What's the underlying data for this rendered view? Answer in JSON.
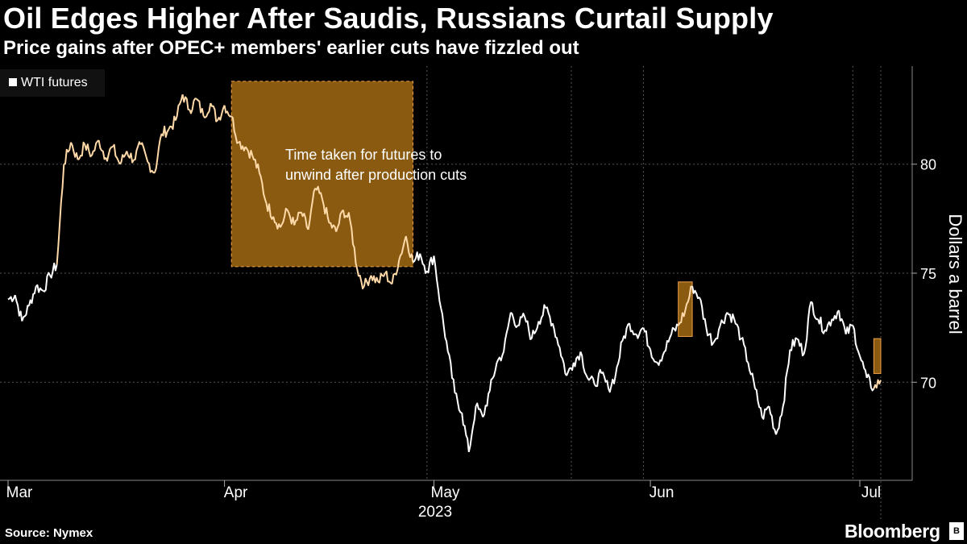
{
  "header": {
    "title": "Oil Edges Higher After Saudis, Russians Curtail Supply",
    "subtitle": "Price gains after OPEC+ members' earlier cuts have fizzled out"
  },
  "footer": {
    "source": "Source: Nymex",
    "brand": "Bloomberg"
  },
  "colors": {
    "background": "#000000",
    "line": "#ffffff",
    "highlight_line": "#ffd9a8",
    "highlight_box": "#8a5a10",
    "highlight_border": "#f0a24a",
    "grid": "#555555"
  },
  "chart_data": {
    "type": "line",
    "legend": {
      "label": "WTI futures",
      "position": "top-left"
    },
    "ylabel": "Dollars a barrel",
    "xlabel": "2023",
    "ylim": [
      65.5,
      84.5
    ],
    "yticks": [
      70,
      75,
      80
    ],
    "x_domain": [
      "2023-03-01",
      "2023-07-04"
    ],
    "month_ticks": [
      {
        "label": "Mar",
        "date": "2023-03-01"
      },
      {
        "label": "Apr",
        "date": "2023-04-01"
      },
      {
        "label": "May",
        "date": "2023-05-01"
      },
      {
        "label": "Jun",
        "date": "2023-06-01"
      },
      {
        "label": "Jul",
        "date": "2023-07-01"
      }
    ],
    "year_label": "2023",
    "annotation": {
      "text_line1": "Time taken for futures to",
      "text_line2": "unwind after production cuts"
    },
    "highlights": [
      {
        "start": "2023-04-02",
        "end": "2023-04-28",
        "y0": 75.3,
        "y1": 83.8
      },
      {
        "start": "2023-06-05",
        "end": "2023-06-07",
        "y0": 72.1,
        "y1": 74.6
      },
      {
        "start": "2023-07-03",
        "end": "2023-07-04",
        "y0": 70.4,
        "y1": 72.0
      }
    ],
    "series": [
      {
        "name": "WTI futures",
        "points": [
          [
            "2023-03-01",
            73.8
          ],
          [
            "2023-03-02",
            74.0
          ],
          [
            "2023-03-03",
            72.8
          ],
          [
            "2023-03-04",
            73.5
          ],
          [
            "2023-03-05",
            74.4
          ],
          [
            "2023-03-06",
            74.2
          ],
          [
            "2023-03-07",
            74.9
          ],
          [
            "2023-03-08",
            75.4
          ],
          [
            "2023-03-09",
            80.0
          ],
          [
            "2023-03-10",
            81.0
          ],
          [
            "2023-03-11",
            80.2
          ],
          [
            "2023-03-12",
            80.9
          ],
          [
            "2023-03-13",
            80.4
          ],
          [
            "2023-03-14",
            81.1
          ],
          [
            "2023-03-15",
            80.3
          ],
          [
            "2023-03-16",
            80.8
          ],
          [
            "2023-03-17",
            80.0
          ],
          [
            "2023-03-18",
            80.6
          ],
          [
            "2023-03-19",
            80.2
          ],
          [
            "2023-03-20",
            80.9
          ],
          [
            "2023-03-21",
            80.1
          ],
          [
            "2023-03-22",
            79.6
          ],
          [
            "2023-03-23",
            81.4
          ],
          [
            "2023-03-24",
            81.6
          ],
          [
            "2023-03-25",
            82.0
          ],
          [
            "2023-03-26",
            83.2
          ],
          [
            "2023-03-27",
            82.5
          ],
          [
            "2023-03-28",
            83.0
          ],
          [
            "2023-03-29",
            82.2
          ],
          [
            "2023-03-30",
            82.8
          ],
          [
            "2023-03-31",
            82.0
          ],
          [
            "2023-04-01",
            82.7
          ],
          [
            "2023-04-02",
            82.2
          ],
          [
            "2023-04-03",
            81.0
          ],
          [
            "2023-04-04",
            80.8
          ],
          [
            "2023-04-05",
            80.4
          ],
          [
            "2023-04-06",
            79.6
          ],
          [
            "2023-04-07",
            78.2
          ],
          [
            "2023-04-08",
            77.6
          ],
          [
            "2023-04-09",
            77.1
          ],
          [
            "2023-04-10",
            77.9
          ],
          [
            "2023-04-11",
            77.2
          ],
          [
            "2023-04-12",
            77.8
          ],
          [
            "2023-04-13",
            77.0
          ],
          [
            "2023-04-14",
            78.9
          ],
          [
            "2023-04-15",
            78.4
          ],
          [
            "2023-04-16",
            77.3
          ],
          [
            "2023-04-17",
            76.9
          ],
          [
            "2023-04-18",
            77.9
          ],
          [
            "2023-04-19",
            77.4
          ],
          [
            "2023-04-20",
            75.2
          ],
          [
            "2023-04-21",
            74.4
          ],
          [
            "2023-04-22",
            74.9
          ],
          [
            "2023-04-23",
            74.6
          ],
          [
            "2023-04-24",
            75.0
          ],
          [
            "2023-04-25",
            74.5
          ],
          [
            "2023-04-26",
            75.6
          ],
          [
            "2023-04-27",
            76.7
          ],
          [
            "2023-04-28",
            75.5
          ],
          [
            "2023-04-29",
            75.9
          ],
          [
            "2023-04-30",
            75.1
          ],
          [
            "2023-05-01",
            75.8
          ],
          [
            "2023-05-02",
            73.4
          ],
          [
            "2023-05-03",
            71.4
          ],
          [
            "2023-05-04",
            69.5
          ],
          [
            "2023-05-05",
            68.6
          ],
          [
            "2023-05-06",
            66.8
          ],
          [
            "2023-05-07",
            68.9
          ],
          [
            "2023-05-08",
            68.4
          ],
          [
            "2023-05-09",
            69.6
          ],
          [
            "2023-05-10",
            70.9
          ],
          [
            "2023-05-11",
            71.4
          ],
          [
            "2023-05-12",
            73.2
          ],
          [
            "2023-05-13",
            72.6
          ],
          [
            "2023-05-14",
            73.0
          ],
          [
            "2023-05-15",
            72.0
          ],
          [
            "2023-05-16",
            72.8
          ],
          [
            "2023-05-17",
            73.4
          ],
          [
            "2023-05-18",
            72.7
          ],
          [
            "2023-05-19",
            71.6
          ],
          [
            "2023-05-20",
            70.3
          ],
          [
            "2023-05-21",
            70.9
          ],
          [
            "2023-05-22",
            71.4
          ],
          [
            "2023-05-23",
            70.2
          ],
          [
            "2023-05-24",
            69.9
          ],
          [
            "2023-05-25",
            70.4
          ],
          [
            "2023-05-26",
            69.7
          ],
          [
            "2023-05-27",
            70.3
          ],
          [
            "2023-05-28",
            71.9
          ],
          [
            "2023-05-29",
            72.7
          ],
          [
            "2023-05-30",
            72.2
          ],
          [
            "2023-05-31",
            72.5
          ],
          [
            "2023-06-01",
            71.5
          ],
          [
            "2023-06-02",
            70.9
          ],
          [
            "2023-06-03",
            71.4
          ],
          [
            "2023-06-04",
            72.2
          ],
          [
            "2023-06-05",
            72.6
          ],
          [
            "2023-06-06",
            73.3
          ],
          [
            "2023-06-07",
            74.4
          ],
          [
            "2023-06-08",
            73.9
          ],
          [
            "2023-06-09",
            72.5
          ],
          [
            "2023-06-10",
            71.8
          ],
          [
            "2023-06-11",
            72.6
          ],
          [
            "2023-06-12",
            73.2
          ],
          [
            "2023-06-13",
            72.9
          ],
          [
            "2023-06-14",
            72.0
          ],
          [
            "2023-06-15",
            70.9
          ],
          [
            "2023-06-16",
            69.7
          ],
          [
            "2023-06-17",
            68.4
          ],
          [
            "2023-06-18",
            68.9
          ],
          [
            "2023-06-19",
            67.6
          ],
          [
            "2023-06-20",
            68.9
          ],
          [
            "2023-06-21",
            71.5
          ],
          [
            "2023-06-22",
            72.0
          ],
          [
            "2023-06-23",
            71.3
          ],
          [
            "2023-06-24",
            73.7
          ],
          [
            "2023-06-25",
            72.9
          ],
          [
            "2023-06-26",
            72.4
          ],
          [
            "2023-06-27",
            72.9
          ],
          [
            "2023-06-28",
            73.3
          ],
          [
            "2023-06-29",
            72.2
          ],
          [
            "2023-06-30",
            72.6
          ],
          [
            "2023-07-01",
            71.2
          ],
          [
            "2023-07-02",
            70.2
          ],
          [
            "2023-07-03",
            69.7
          ],
          [
            "2023-07-04",
            70.1
          ]
        ]
      }
    ]
  }
}
